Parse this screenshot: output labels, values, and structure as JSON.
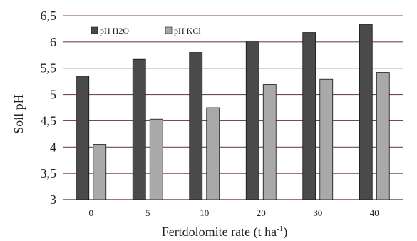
{
  "chart_data": {
    "type": "bar",
    "categories": [
      "0",
      "5",
      "10",
      "20",
      "30",
      "40"
    ],
    "series": [
      {
        "name": "pH H2O",
        "values": [
          5.35,
          5.67,
          5.8,
          6.02,
          6.18,
          6.33
        ],
        "color": "#4a4a4a"
      },
      {
        "name": "pH KCl",
        "values": [
          4.05,
          4.53,
          4.75,
          5.19,
          5.29,
          5.42
        ],
        "color": "#a9a9a9"
      }
    ],
    "xlabel_main": "Fertdolomite rate (t ha",
    "xlabel_sup": "-1",
    "xlabel_end": ")",
    "ylabel": "Soil pH",
    "ylim": [
      3,
      6.5
    ],
    "yticks": [
      "3",
      "3,5",
      "4",
      "4,5",
      "5",
      "5,5",
      "6",
      "6,5"
    ],
    "ytick_values": [
      3,
      3.5,
      4,
      4.5,
      5,
      5.5,
      6,
      6.5
    ],
    "grid": true,
    "legend_position": "top-left",
    "grid_color": "#7a4a4a"
  }
}
